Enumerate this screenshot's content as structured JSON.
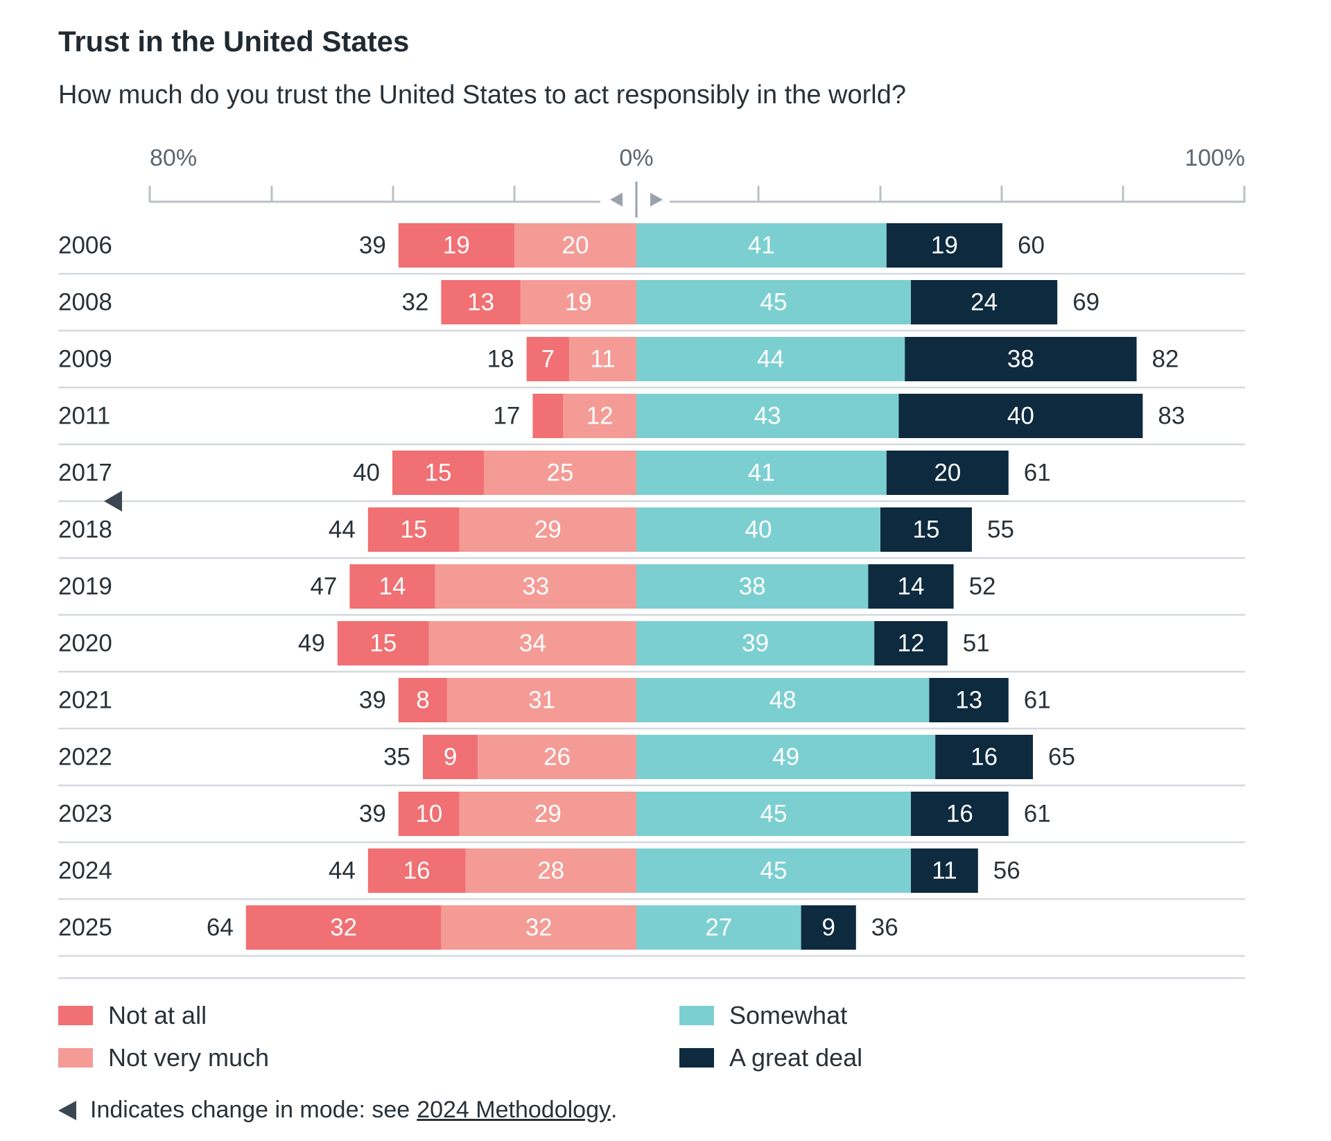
{
  "header": {
    "title": "Trust in the United States",
    "subtitle": "How much do you trust the United States to act responsibly in the world?"
  },
  "footnote": {
    "text": "Indicates change in mode: see",
    "link": "2024 Methodology",
    "end": "."
  },
  "colors": {
    "not_at_all": "#f07073",
    "not_very_much": "#f49b96",
    "somewhat": "#7ccfd1",
    "great_deal": "#0d2a3f",
    "grid": "#d3d8dd",
    "axis": "#b9c0c7"
  },
  "chart_data": {
    "type": "bar",
    "orientation": "horizontal-diverging-stacked",
    "title": "Trust in the United States",
    "subtitle": "How much do you trust the United States to act responsibly in the world?",
    "axis_labels": {
      "left": "80%",
      "center": "0%",
      "right": "100%"
    },
    "categories": [
      "2006",
      "2008",
      "2009",
      "2011",
      "2017",
      "2018",
      "2019",
      "2020",
      "2021",
      "2022",
      "2023",
      "2024",
      "2025"
    ],
    "series": [
      {
        "name": "Not at all",
        "side": "negative",
        "values": [
          19,
          13,
          7,
          5,
          15,
          15,
          14,
          15,
          8,
          9,
          10,
          16,
          32
        ],
        "labels": [
          "19",
          "13",
          "7",
          "",
          "15",
          "15",
          "14",
          "15",
          "8",
          "9",
          "10",
          "16",
          "32"
        ]
      },
      {
        "name": "Not very much",
        "side": "negative",
        "values": [
          20,
          19,
          11,
          12,
          25,
          29,
          33,
          34,
          31,
          26,
          29,
          28,
          32
        ],
        "labels": [
          "20",
          "19",
          "11",
          "12",
          "25",
          "29",
          "33",
          "34",
          "31",
          "26",
          "29",
          "28",
          "32"
        ]
      },
      {
        "name": "Somewhat",
        "side": "positive",
        "values": [
          41,
          45,
          44,
          43,
          41,
          40,
          38,
          39,
          48,
          49,
          45,
          45,
          27
        ],
        "labels": [
          "41",
          "45",
          "44",
          "43",
          "41",
          "40",
          "38",
          "39",
          "48",
          "49",
          "45",
          "45",
          "27"
        ]
      },
      {
        "name": "A great deal",
        "side": "positive",
        "values": [
          19,
          24,
          38,
          40,
          20,
          15,
          14,
          12,
          13,
          16,
          16,
          11,
          9
        ],
        "labels": [
          "19",
          "24",
          "38",
          "40",
          "20",
          "15",
          "14",
          "12",
          "13",
          "16",
          "16",
          "11",
          "9"
        ]
      }
    ],
    "negative_totals": [
      39,
      32,
      18,
      17,
      40,
      44,
      47,
      49,
      39,
      35,
      39,
      44,
      64
    ],
    "positive_totals": [
      60,
      69,
      82,
      83,
      61,
      55,
      52,
      51,
      61,
      65,
      61,
      56,
      36
    ],
    "mode_change_marker_between": [
      "2017",
      "2018"
    ],
    "legend": [
      "Not at all",
      "Not very much",
      "Somewhat",
      "A great deal"
    ]
  }
}
